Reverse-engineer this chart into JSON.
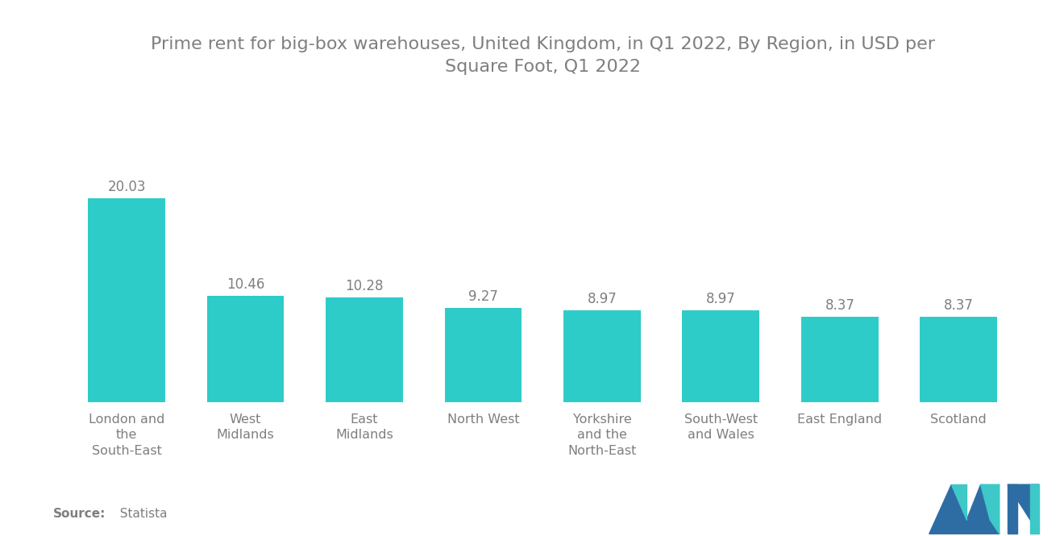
{
  "title": "Prime rent for big-box warehouses, United Kingdom, in Q1 2022, By Region, in USD per\nSquare Foot, Q1 2022",
  "categories": [
    "London and\nthe\nSouth-East",
    "West\nMidlands",
    "East\nMidlands",
    "North West",
    "Yorkshire\nand the\nNorth-East",
    "South-West\nand Wales",
    "East England",
    "Scotland"
  ],
  "values": [
    20.03,
    10.46,
    10.28,
    9.27,
    8.97,
    8.97,
    8.37,
    8.37
  ],
  "bar_color": "#2ECCC8",
  "background_color": "#ffffff",
  "label_color": "#7F7F7F",
  "source_bold": "Source:",
  "source_normal": "  Statista",
  "title_fontsize": 16,
  "label_fontsize": 11.5,
  "value_fontsize": 12,
  "source_fontsize": 11,
  "ylim": [
    0,
    30
  ]
}
